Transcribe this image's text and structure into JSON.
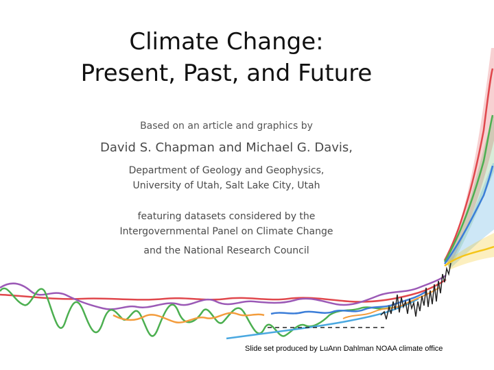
{
  "slide": {
    "title_line1": "Climate Change:",
    "title_line2": "Present, Past, and Future",
    "intro": "Based on an article and graphics by",
    "authors": "David S. Chapman and Michael G. Davis,",
    "affiliation_line1": "Department of Geology and Geophysics,",
    "affiliation_line2": "University of Utah, Salt Lake City, Utah",
    "datasets_line1": "featuring datasets considered by the",
    "datasets_line2": "Intergovernmental Panel on Climate Change",
    "datasets_line3": "and the National Research Council",
    "credit": "Slide set produced by LuAnn Dahlman NOAA climate office"
  },
  "colors": {
    "red": "#e0474c",
    "green": "#4caf50",
    "purple": "#9b59b6",
    "orange": "#f39c3c",
    "blue": "#3b7dd8",
    "lightblue": "#4aa8e0",
    "yellow": "#f5c518",
    "black": "#222222"
  }
}
